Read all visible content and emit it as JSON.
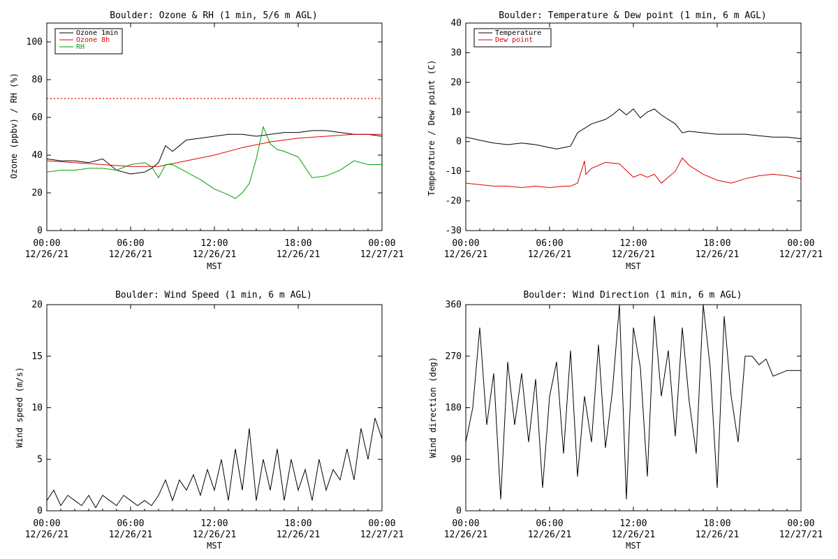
{
  "chart_data": [
    {
      "type": "line",
      "title": "Boulder: Ozone & RH (1 min, 5/6 m AGL)",
      "xlabel": "MST",
      "ylabel": "Ozone (ppbv) / RH (%)",
      "xlim": [
        0,
        24
      ],
      "ylim": [
        0,
        110
      ],
      "yticks": [
        0,
        20,
        40,
        60,
        80,
        100
      ],
      "xticks": [
        {
          "time": "00:00",
          "date": "12/26/21"
        },
        {
          "time": "06:00",
          "date": "12/26/21"
        },
        {
          "time": "12:00",
          "date": "12/26/21"
        },
        {
          "time": "18:00",
          "date": "12/26/21"
        },
        {
          "time": "00:00",
          "date": "12/27/21"
        }
      ],
      "legend_position": "top-left",
      "reference_line": {
        "y": 70,
        "color": "#e00000",
        "style": "dotted"
      },
      "series": [
        {
          "name": "Ozone 1min",
          "color": "#000000",
          "x": [
            0,
            1,
            2,
            3,
            4,
            5,
            6,
            7,
            7.5,
            8,
            8.5,
            9,
            10,
            11,
            12,
            13,
            14,
            15,
            16,
            17,
            18,
            19,
            20,
            21,
            22,
            23,
            24
          ],
          "y": [
            38,
            37,
            37,
            36,
            38,
            32,
            30,
            31,
            33,
            36,
            45,
            42,
            48,
            49,
            50,
            51,
            51,
            50,
            51,
            52,
            52,
            53,
            53,
            52,
            51,
            51,
            50
          ]
        },
        {
          "name": "Ozone 8h",
          "color": "#e00000",
          "x": [
            0,
            2,
            4,
            6,
            8,
            10,
            12,
            14,
            16,
            18,
            20,
            22,
            24
          ],
          "y": [
            37,
            36,
            35,
            34,
            34,
            37,
            40,
            44,
            47,
            49,
            50,
            51,
            51
          ]
        },
        {
          "name": "RH",
          "color": "#00a000",
          "x": [
            0,
            1,
            2,
            3,
            4,
            5,
            6,
            7,
            7.5,
            8,
            8.5,
            9,
            10,
            11,
            12,
            13,
            13.5,
            14,
            14.5,
            15,
            15.5,
            16,
            16.5,
            17,
            18,
            19,
            20,
            21,
            22,
            23,
            24
          ],
          "y": [
            31,
            32,
            32,
            33,
            33,
            32,
            35,
            36,
            34,
            28,
            35,
            35,
            31,
            27,
            22,
            19,
            17,
            20,
            25,
            38,
            55,
            46,
            43,
            42,
            39,
            28,
            29,
            32,
            37,
            35,
            35
          ]
        }
      ]
    },
    {
      "type": "line",
      "title": "Boulder: Temperature & Dew point (1 min, 6 m AGL)",
      "xlabel": "MST",
      "ylabel": "Temperature / Dew point (C)",
      "xlim": [
        0,
        24
      ],
      "ylim": [
        -30,
        40
      ],
      "yticks": [
        -30,
        -20,
        -10,
        0,
        10,
        20,
        30,
        40
      ],
      "xticks": [
        {
          "time": "00:00",
          "date": "12/26/21"
        },
        {
          "time": "06:00",
          "date": "12/26/21"
        },
        {
          "time": "12:00",
          "date": "12/26/21"
        },
        {
          "time": "18:00",
          "date": "12/26/21"
        },
        {
          "time": "00:00",
          "date": "12/27/21"
        }
      ],
      "legend_position": "top-left",
      "series": [
        {
          "name": "Temperature",
          "color": "#000000",
          "x": [
            0,
            1,
            2,
            3,
            4,
            5,
            6,
            6.5,
            7,
            7.5,
            8,
            9,
            10,
            10.5,
            11,
            11.5,
            12,
            12.5,
            13,
            13.5,
            14,
            15,
            15.5,
            16,
            17,
            18,
            19,
            20,
            21,
            22,
            23,
            24
          ],
          "y": [
            1.5,
            0.5,
            -0.5,
            -1,
            -0.5,
            -1,
            -2,
            -2.5,
            -2,
            -1.5,
            3,
            6,
            7.5,
            9,
            11,
            9,
            11,
            8,
            10,
            11,
            9,
            6,
            3,
            3.5,
            3,
            2.5,
            2.5,
            2.5,
            2,
            1.5,
            1.5,
            1
          ]
        },
        {
          "name": "Dew point",
          "color": "#e00000",
          "x": [
            0,
            1,
            2,
            3,
            4,
            5,
            6,
            7,
            7.5,
            8,
            8.5,
            8.6,
            9,
            10,
            11,
            12,
            12.5,
            13,
            13.5,
            14,
            15,
            15.5,
            16,
            17,
            18,
            19,
            20,
            21,
            22,
            23,
            24
          ],
          "y": [
            -14,
            -14.5,
            -15,
            -15,
            -15.5,
            -15,
            -15.5,
            -15,
            -15,
            -14,
            -6.5,
            -11,
            -9,
            -7,
            -7.5,
            -12,
            -11,
            -12,
            -11,
            -14,
            -10,
            -5.5,
            -8,
            -11,
            -13,
            -14,
            -12.5,
            -11.5,
            -11,
            -11.5,
            -12.5
          ]
        }
      ]
    },
    {
      "type": "line",
      "title": "Boulder: Wind Speed (1 min, 6 m AGL)",
      "xlabel": "MST",
      "ylabel": "Wind speed (m/s)",
      "xlim": [
        0,
        24
      ],
      "ylim": [
        0,
        20
      ],
      "yticks": [
        0,
        5,
        10,
        15,
        20
      ],
      "xticks": [
        {
          "time": "00:00",
          "date": "12/26/21"
        },
        {
          "time": "06:00",
          "date": "12/26/21"
        },
        {
          "time": "12:00",
          "date": "12/26/21"
        },
        {
          "time": "18:00",
          "date": "12/26/21"
        },
        {
          "time": "00:00",
          "date": "12/27/21"
        }
      ],
      "series": [
        {
          "color": "#000000",
          "x": [
            0,
            0.5,
            1,
            1.5,
            2,
            2.5,
            3,
            3.5,
            4,
            4.5,
            5,
            5.5,
            6,
            6.5,
            7,
            7.5,
            8,
            8.5,
            9,
            9.5,
            10,
            10.5,
            11,
            11.5,
            12,
            12.5,
            13,
            13.5,
            14,
            14.5,
            15,
            15.5,
            16,
            16.5,
            17,
            17.5,
            18,
            18.5,
            19,
            19.5,
            20,
            20.5,
            21,
            21.5,
            22,
            22.5,
            23,
            23.5,
            24
          ],
          "y": [
            1,
            2,
            0.5,
            1.5,
            1,
            0.5,
            1.5,
            0.3,
            1.5,
            1,
            0.5,
            1.5,
            1,
            0.5,
            1,
            0.5,
            1.5,
            3,
            1,
            3,
            2,
            3.5,
            1.5,
            4,
            2,
            5,
            1,
            6,
            2,
            8,
            1,
            5,
            2,
            6,
            1,
            5,
            2,
            4,
            1,
            5,
            2,
            4,
            3,
            6,
            3,
            8,
            5,
            9,
            7
          ]
        }
      ]
    },
    {
      "type": "line",
      "title": "Boulder: Wind Direction (1 min, 6 m AGL)",
      "xlabel": "MST",
      "ylabel": "Wind direction (deg)",
      "xlim": [
        0,
        24
      ],
      "ylim": [
        0,
        360
      ],
      "yticks": [
        0,
        90,
        180,
        270,
        360
      ],
      "xticks": [
        {
          "time": "00:00",
          "date": "12/26/21"
        },
        {
          "time": "06:00",
          "date": "12/26/21"
        },
        {
          "time": "12:00",
          "date": "12/26/21"
        },
        {
          "time": "18:00",
          "date": "12/26/21"
        },
        {
          "time": "00:00",
          "date": "12/27/21"
        }
      ],
      "series": [
        {
          "color": "#000000",
          "x": [
            0,
            0.5,
            1,
            1.5,
            2,
            2.5,
            3,
            3.5,
            4,
            4.5,
            5,
            5.5,
            6,
            6.5,
            7,
            7.5,
            8,
            8.5,
            9,
            9.5,
            10,
            10.5,
            11,
            11.5,
            12,
            12.5,
            13,
            13.5,
            14,
            14.5,
            15,
            15.5,
            16,
            16.5,
            17,
            17.5,
            18,
            18.5,
            19,
            19.5,
            20,
            20.5,
            21,
            21.5,
            22,
            22.5,
            23,
            23.5,
            24
          ],
          "y": [
            120,
            180,
            320,
            150,
            240,
            20,
            260,
            150,
            240,
            120,
            230,
            40,
            200,
            260,
            100,
            280,
            60,
            200,
            120,
            290,
            110,
            210,
            360,
            20,
            320,
            250,
            60,
            340,
            200,
            280,
            130,
            320,
            190,
            100,
            360,
            250,
            40,
            340,
            200,
            120,
            270,
            270,
            255,
            265,
            235,
            240,
            245,
            245,
            245
          ]
        }
      ]
    }
  ]
}
